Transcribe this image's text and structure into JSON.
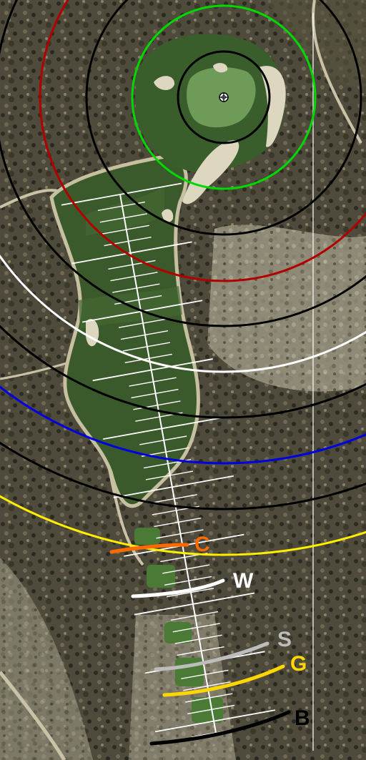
{
  "map": {
    "type": "golf-hole-yardage-map",
    "imagery": "aerial"
  },
  "pin": {
    "icon": "pin-crosshair-icon"
  },
  "distance_rings": [
    {
      "id": "ring-inner-black",
      "color": "#000000"
    },
    {
      "id": "ring-green",
      "color": "#00d900"
    },
    {
      "id": "ring-black-2",
      "color": "#000000"
    },
    {
      "id": "ring-red",
      "color": "#b00000"
    },
    {
      "id": "ring-black-3",
      "color": "#000000"
    },
    {
      "id": "ring-white",
      "color": "#ffffff"
    },
    {
      "id": "ring-black-4",
      "color": "#000000"
    },
    {
      "id": "ring-blue",
      "color": "#0000e0"
    },
    {
      "id": "ring-black-5",
      "color": "#000000"
    },
    {
      "id": "ring-yellow",
      "color": "#ffee00"
    }
  ],
  "tees": [
    {
      "label": "C",
      "color": "#ff6a00"
    },
    {
      "label": "W",
      "color": "#ffffff"
    },
    {
      "label": "S",
      "color": "#bdbdbd"
    },
    {
      "label": "G",
      "color": "#ffd700"
    },
    {
      "label": "B",
      "color": "#000000"
    }
  ]
}
